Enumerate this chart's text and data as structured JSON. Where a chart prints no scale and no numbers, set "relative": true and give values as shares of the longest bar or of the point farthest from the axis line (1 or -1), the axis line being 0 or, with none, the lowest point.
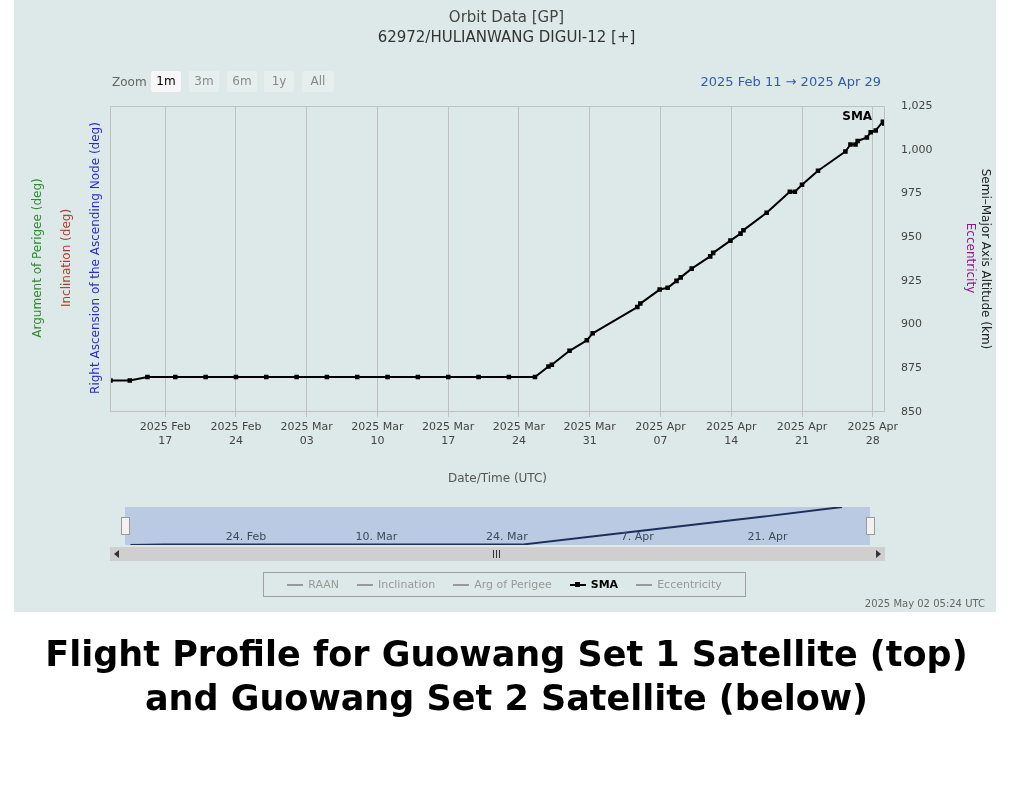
{
  "chart_data": [
    {
      "type": "line",
      "title": "Orbit Data [GP]",
      "subtitle": "62972/HULIANWANG DIGUI-12 [+]",
      "xlabel": "Date/Time (UTC)",
      "ylabel": "Semi–Major Axis Altitude (km)",
      "annotations": [
        "Zoom",
        "1m",
        "3m",
        "6m",
        "1y",
        "All",
        "2025 Feb 11  →  2025 Apr 29",
        "Argument of Perigee (deg)",
        "Inclination (deg)",
        "Right Ascension of the Ascending Node (deg)",
        "Eccentricity",
        "2025 May 02 05:24 UTC",
        "Flight Profile for Guowang Set 1 Satellite (top) and Guowang Set 2 Satellite (below)"
      ],
      "xlim": [
        "2025-02-11T13:00",
        "2025-04-29T05:00"
      ],
      "xticks": [
        {
          "value": "2025-02-17",
          "label": "2025 Feb\n17"
        },
        {
          "value": "2025-02-24",
          "label": "2025 Feb\n24"
        },
        {
          "value": "2025-03-03",
          "label": "2025 Mar\n03"
        },
        {
          "value": "2025-03-10",
          "label": "2025 Mar\n10"
        },
        {
          "value": "2025-03-17",
          "label": "2025 Mar\n17"
        },
        {
          "value": "2025-03-24",
          "label": "2025 Mar\n24"
        },
        {
          "value": "2025-03-31",
          "label": "2025 Mar\n31"
        },
        {
          "value": "2025-04-07",
          "label": "2025 Apr\n07"
        },
        {
          "value": "2025-04-14",
          "label": "2025 Apr\n14"
        },
        {
          "value": "2025-04-21",
          "label": "2025 Apr\n21"
        },
        {
          "value": "2025-04-28",
          "label": "2025 Apr\n28"
        }
      ],
      "ylim": [
        850,
        1025
      ],
      "yticks": [
        850,
        875,
        900,
        925,
        950,
        975,
        {
          "value": 1000,
          "label": "1,000"
        },
        {
          "value": 1025,
          "label": "1,025"
        }
      ],
      "grid": "x",
      "legend": "bottom",
      "marker": "square",
      "series": [
        {
          "name": "RAAN",
          "color": "#999999"
        },
        {
          "name": "Inclination",
          "color": "#999999"
        },
        {
          "name": "Arg of Perigee",
          "color": "#999999"
        },
        {
          "name": "SMA",
          "color": "#000000",
          "x": [
            "2025-02-11T14:00",
            "2025-02-13T12:00",
            "2025-02-15T06:00",
            "2025-02-18",
            "2025-02-21",
            "2025-02-24",
            "2025-02-27",
            "2025-03-02",
            "2025-03-05",
            "2025-03-08",
            "2025-03-11",
            "2025-03-14",
            "2025-03-17",
            "2025-03-20",
            "2025-03-23",
            "2025-03-25T14:00",
            "2025-03-26T22:00",
            "2025-03-27T06:00",
            "2025-03-29",
            "2025-03-30T17:00",
            "2025-03-31T07:00",
            "2025-04-04T17:00",
            "2025-04-05",
            "2025-04-06T22:00",
            "2025-04-07T17:00",
            "2025-04-08T14:00",
            "2025-04-09",
            "2025-04-10T02:00",
            "2025-04-11T22:00",
            "2025-04-12T05:00",
            "2025-04-13T22:00",
            "2025-04-14T22:00",
            "2025-04-15T05:00",
            "2025-04-17T12:00",
            "2025-04-19T19:00",
            "2025-04-20T07:00",
            "2025-04-21",
            "2025-04-22T14:00",
            "2025-04-25T07:00",
            "2025-04-25T19:00",
            "2025-04-26T07:00",
            "2025-04-26T12:00",
            "2025-04-27T10:00",
            "2025-04-27T19:00",
            "2025-04-28T07:00",
            "2025-04-29",
            "2025-04-29T03:00"
          ],
          "values": [
            868,
            868,
            870,
            870,
            870,
            870,
            870,
            870,
            870,
            870,
            870,
            870,
            870,
            870,
            870,
            870,
            876,
            877,
            885,
            891,
            895,
            910,
            912,
            920,
            921,
            925,
            927,
            932,
            939,
            941,
            948,
            952,
            954,
            964,
            976,
            976,
            980,
            988,
            999,
            1003,
            1003,
            1005,
            1007,
            1010,
            1011,
            1016,
            1015
          ]
        },
        {
          "name": "Eccentricity",
          "color": "#999999"
        }
      ]
    },
    {
      "type": "line",
      "relative": true,
      "tick_labels": "x",
      "marker": "none",
      "xlim": [
        "2025-02-11",
        "2025-05-02"
      ],
      "xticks": [
        {
          "value": "2025-02-24",
          "label": "24. Feb"
        },
        {
          "value": "2025-03-10",
          "label": "10. Mar"
        },
        {
          "value": "2025-03-24",
          "label": "24. Mar"
        },
        {
          "value": "2025-04-07",
          "label": "7. Apr"
        },
        {
          "value": "2025-04-21",
          "label": "21. Apr"
        }
      ],
      "series": [
        {
          "color": "#1c2e5a",
          "x": [
            "2025-02-11T14:00",
            "2025-02-15T06:00",
            "2025-03-25T14:00",
            "2025-04-07",
            "2025-04-21",
            "2025-04-29"
          ],
          "values": [
            0,
            0.01,
            0.01,
            0.36,
            0.76,
            1
          ]
        }
      ]
    }
  ]
}
